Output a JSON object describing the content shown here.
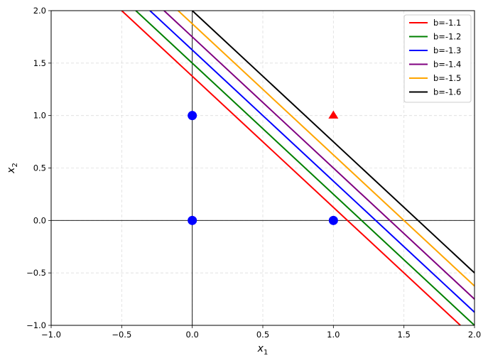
{
  "chart_data": {
    "type": "line",
    "title": "",
    "xlabel": "x",
    "xlabel_sub": "1",
    "ylabel": "x",
    "ylabel_sub": "2",
    "xlim": [
      -1.0,
      2.0
    ],
    "ylim": [
      -1.0,
      2.0
    ],
    "grid": true,
    "legend_position": "top-right",
    "x_ticks": [
      -1.0,
      -0.5,
      0.0,
      0.5,
      1.0,
      1.5,
      2.0
    ],
    "x_tick_labels": [
      "−1.0",
      "−0.5",
      "0.0",
      "0.5",
      "1.0",
      "1.5",
      "2.0"
    ],
    "y_ticks": [
      -1.0,
      -0.5,
      0.0,
      0.5,
      1.0,
      1.5,
      2.0
    ],
    "y_tick_labels": [
      "−1.0",
      "−0.5",
      "0.0",
      "0.5",
      "1.0",
      "1.5",
      "2.0"
    ],
    "reference_lines": {
      "x": 0,
      "y": 0
    },
    "series": [
      {
        "name": "b=-1.1",
        "color": "#ff0000",
        "x": [
          -0.5,
          1.9
        ],
        "y": [
          2.0,
          -1.0
        ]
      },
      {
        "name": "b=-1.2",
        "color": "#008000",
        "x": [
          -0.4,
          2.0
        ],
        "y": [
          2.0,
          -1.0
        ]
      },
      {
        "name": "b=-1.3",
        "color": "#0000ff",
        "x": [
          -0.3,
          2.0
        ],
        "y": [
          2.0,
          -0.875
        ]
      },
      {
        "name": "b=-1.4",
        "color": "#800080",
        "x": [
          -0.2,
          2.0
        ],
        "y": [
          2.0,
          -0.75
        ]
      },
      {
        "name": "b=-1.5",
        "color": "#ffa500",
        "x": [
          -0.1,
          2.0
        ],
        "y": [
          2.0,
          -0.625
        ]
      },
      {
        "name": "b=-1.6",
        "color": "#000000",
        "x": [
          0.0,
          2.0
        ],
        "y": [
          2.0,
          -0.5
        ]
      }
    ],
    "points": [
      {
        "x": 0,
        "y": 0,
        "marker": "circle",
        "color": "#0000ff"
      },
      {
        "x": 0,
        "y": 1,
        "marker": "circle",
        "color": "#0000ff"
      },
      {
        "x": 1,
        "y": 0,
        "marker": "circle",
        "color": "#0000ff"
      },
      {
        "x": 1,
        "y": 1,
        "marker": "triangle",
        "color": "#ff0000"
      }
    ]
  }
}
